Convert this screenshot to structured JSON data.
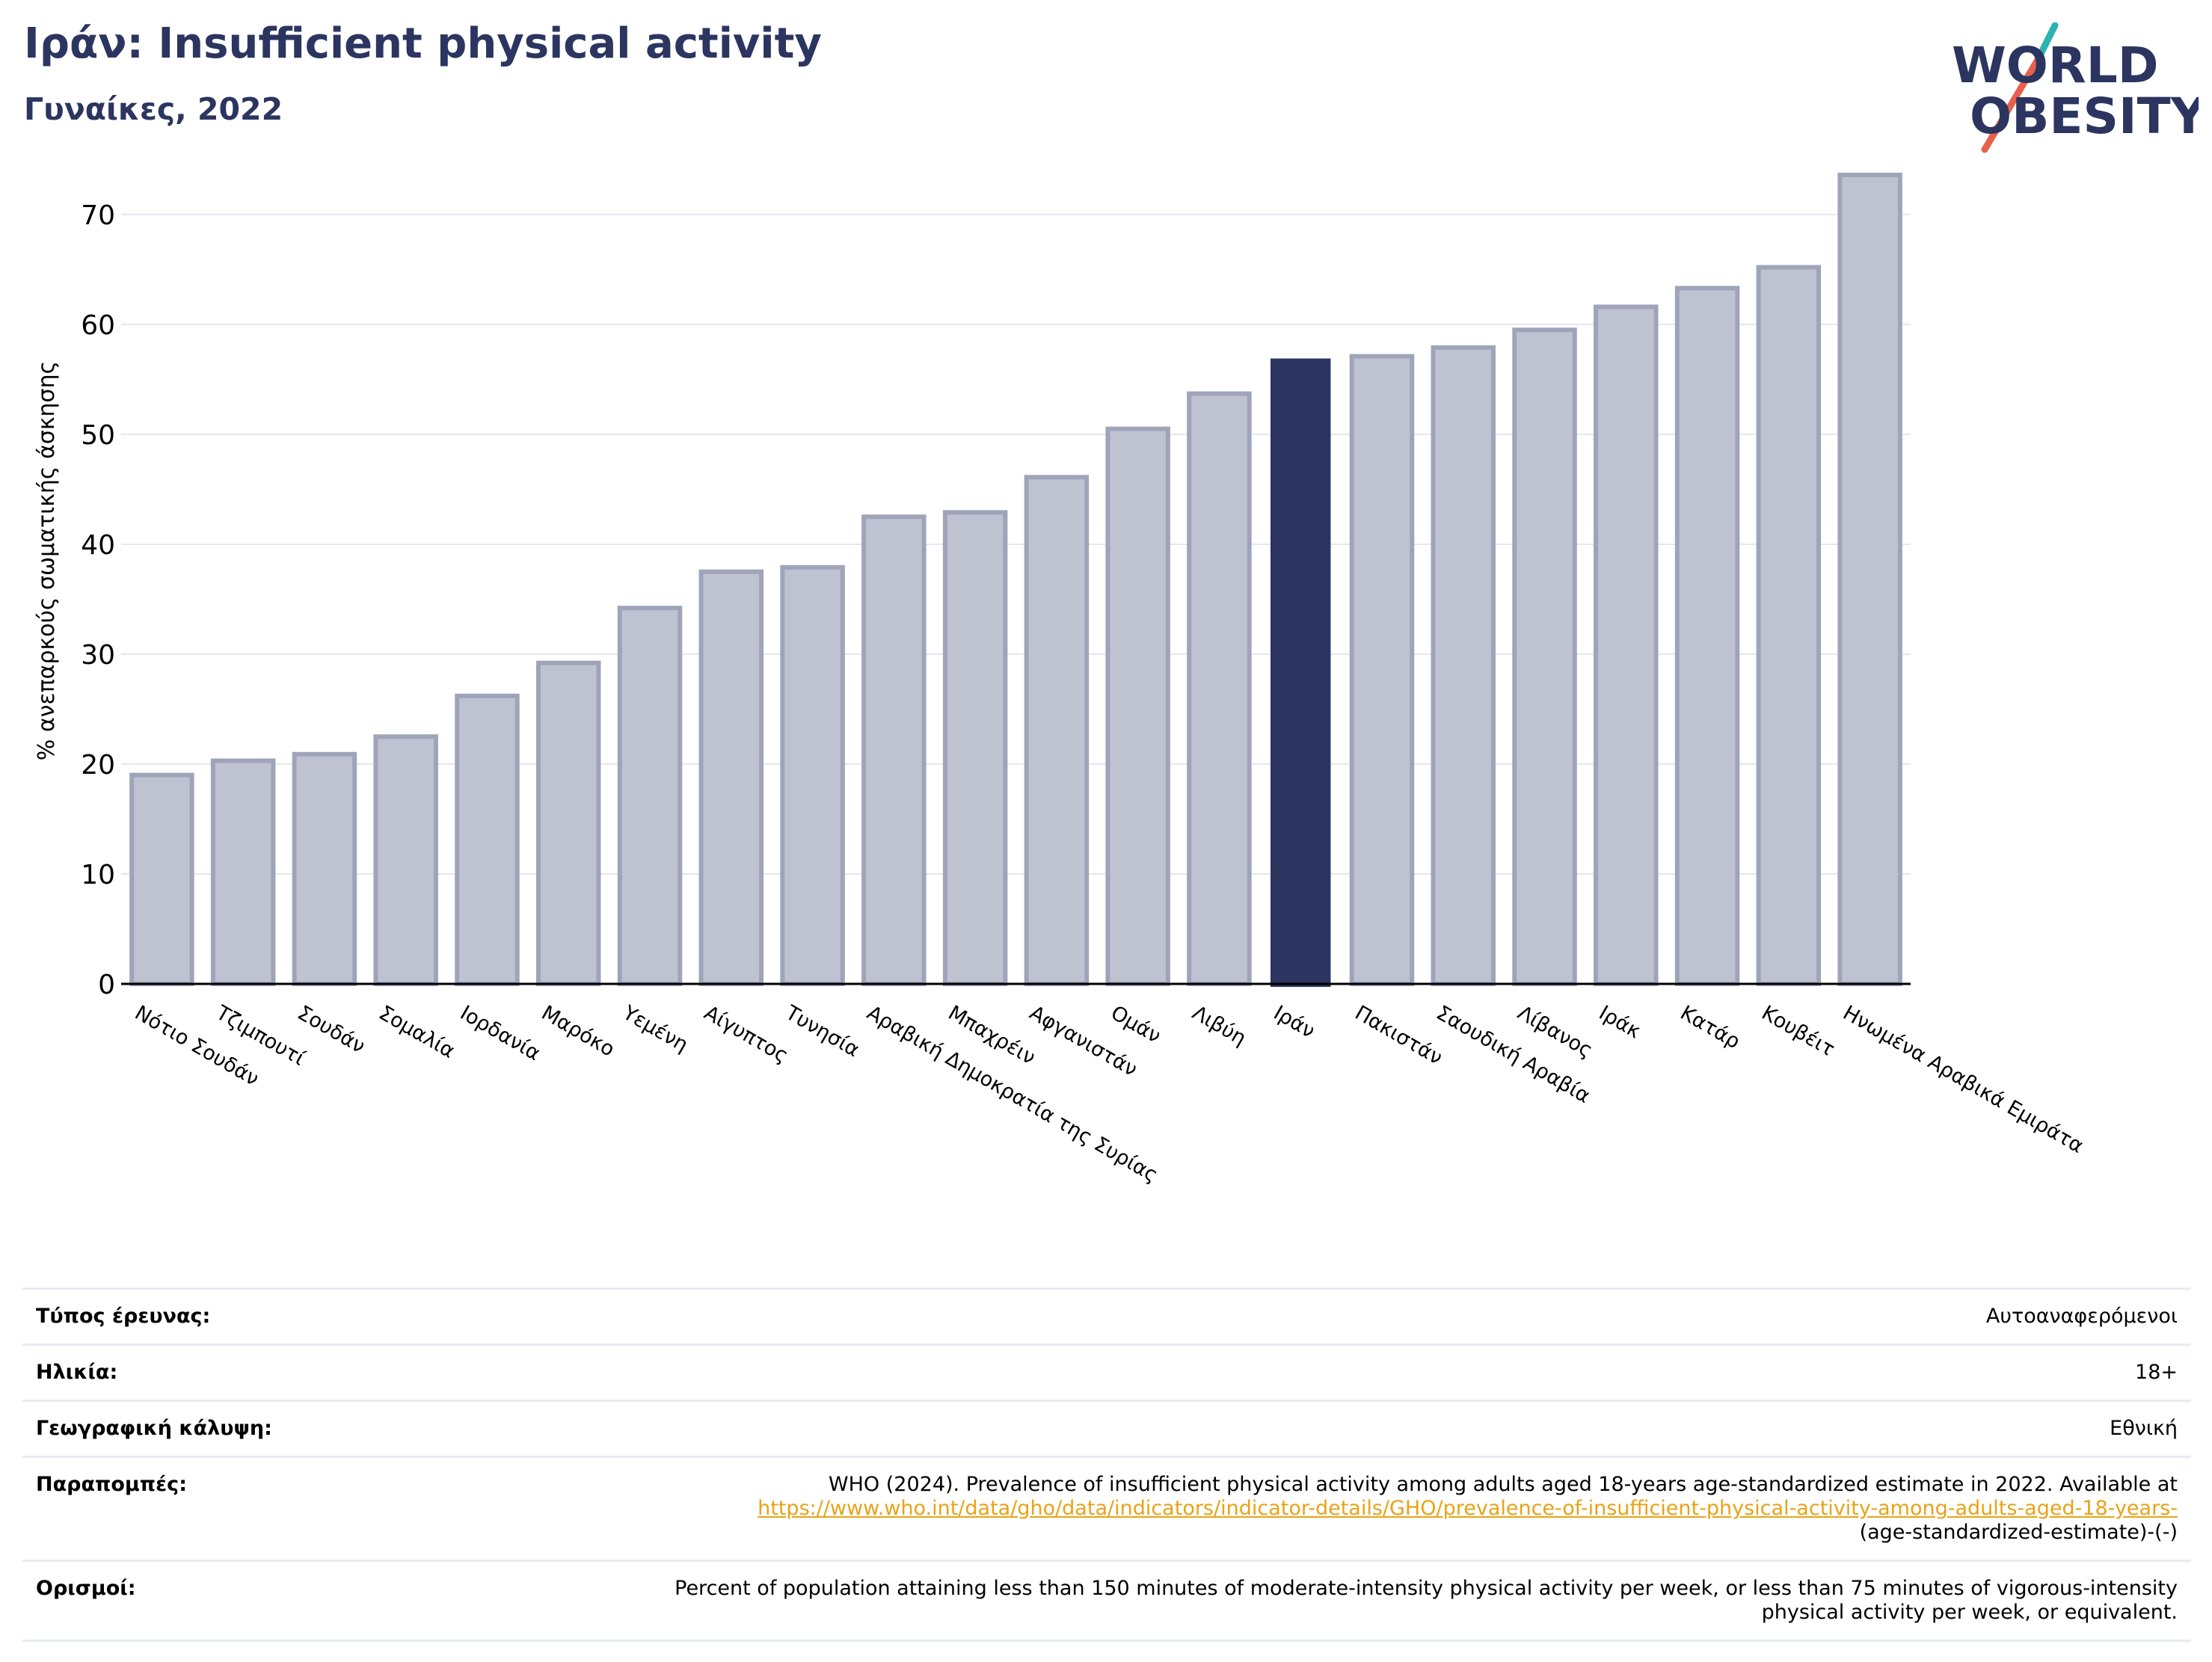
{
  "header": {
    "title": "Ιράν: Insufficient physical activity",
    "subtitle": "Γυναίκες, 2022"
  },
  "logo": {
    "line1": "WORLD",
    "line2": "OBESITY",
    "colors": {
      "text": "#2b3560",
      "slash_teal": "#2bb3b1",
      "slash_red": "#e8604c"
    }
  },
  "colors": {
    "highlight_bar": "#2b3560",
    "other_bar_fill": "#bfc2d0",
    "other_bar_stroke": "#9fa4ba",
    "grid": "#e6e7ee",
    "axis": "#000000",
    "link": "#e8a317",
    "table_border": "#e8ebf6"
  },
  "chart_data": {
    "type": "bar",
    "title": "Ιράν: Insufficient physical activity",
    "subtitle": "Γυναίκες, 2022",
    "xlabel": "",
    "ylabel": "% ανεπαρκούς σωματικής άσκησης",
    "ylim": [
      0,
      77
    ],
    "yticks": [
      0,
      10,
      20,
      30,
      40,
      50,
      60,
      70
    ],
    "grid": true,
    "highlight": "Ιράν",
    "categories": [
      "Νότιο Σουδάν",
      "Τζιμπουτί",
      "Σουδάν",
      "Σομαλία",
      "Ιορδανία",
      "Μαρόκο",
      "Υεμένη",
      "Αίγυπτος",
      "Τυνησία",
      "Αραβική Δημοκρατία της Συρίας",
      "Μπαχρέιν",
      "Αφγανιστάν",
      "Ομάν",
      "Λιβύη",
      "Ιράν",
      "Πακιστάν",
      "Σαουδική Αραβία",
      "Λίβανος",
      "Ιράκ",
      "Κατάρ",
      "Κουβέιτ",
      "Ηνωμένα Αραβικά Εμιράτα"
    ],
    "values": [
      19.0,
      20.3,
      20.9,
      22.5,
      26.2,
      29.2,
      34.2,
      37.5,
      37.9,
      42.5,
      42.9,
      46.1,
      50.5,
      53.7,
      56.9,
      57.1,
      57.9,
      59.5,
      61.6,
      63.3,
      65.2,
      73.6
    ]
  },
  "info": [
    {
      "label": "Τύπος έρευνας:",
      "value": "Αυτοαναφερόμενοι"
    },
    {
      "label": "Ηλικία:",
      "value": "18+"
    },
    {
      "label": "Γεωγραφική κάλυψη:",
      "value": "Εθνική"
    },
    {
      "label": "Παραπομπές:",
      "value_pre": "WHO (2024). Prevalence of insufficient physical activity among adults aged 18-years age-standardized estimate in 2022. Available at",
      "link": "https://www.who.int/data/gho/data/indicators/indicator-details/GHO/prevalence-of-insufficient-physical-activity-among-adults-aged-18-years-",
      "value_post": "(age-standardized-estimate)-(-)"
    },
    {
      "label": "Ορισμοί:",
      "value": "Percent of population attaining less than 150 minutes of moderate-intensity physical activity per week, or less than 75 minutes of vigorous-intensity physical activity per week, or equivalent."
    }
  ]
}
